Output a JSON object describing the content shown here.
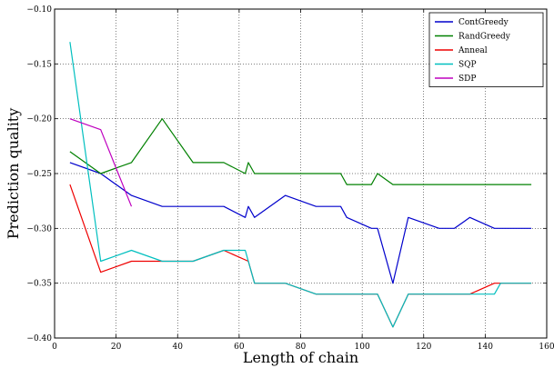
{
  "chart_data": {
    "type": "line",
    "xlabel": "Length of chain",
    "ylabel": "Prediction quality",
    "xlim": [
      0,
      160
    ],
    "ylim": [
      -0.4,
      -0.1
    ],
    "xticks": [
      "0",
      "20",
      "40",
      "60",
      "80",
      "100",
      "120",
      "140",
      "160"
    ],
    "yticks": [
      "−0.40",
      "−0.35",
      "−0.30",
      "−0.25",
      "−0.20",
      "−0.15",
      "−0.10"
    ],
    "grid": true,
    "legend_position": "top-right",
    "series": [
      {
        "name": "ContGreedy",
        "color": "#0000cc",
        "x": [
          5,
          15,
          25,
          35,
          45,
          55,
          62,
          63,
          65,
          75,
          85,
          93,
          95,
          103,
          105,
          110,
          115,
          125,
          130,
          135,
          143,
          155
        ],
        "y": [
          -0.24,
          -0.25,
          -0.27,
          -0.28,
          -0.28,
          -0.28,
          -0.29,
          -0.28,
          -0.29,
          -0.27,
          -0.28,
          -0.28,
          -0.29,
          -0.3,
          -0.3,
          -0.35,
          -0.29,
          -0.3,
          -0.3,
          -0.29,
          -0.3,
          -0.3
        ]
      },
      {
        "name": "RandGreedy",
        "color": "#008000",
        "x": [
          5,
          15,
          25,
          35,
          45,
          55,
          62,
          63,
          65,
          75,
          85,
          93,
          95,
          103,
          105,
          110,
          115,
          125,
          135,
          143,
          155
        ],
        "y": [
          -0.23,
          -0.25,
          -0.24,
          -0.2,
          -0.24,
          -0.24,
          -0.25,
          -0.24,
          -0.25,
          -0.25,
          -0.25,
          -0.25,
          -0.26,
          -0.26,
          -0.25,
          -0.26,
          -0.26,
          -0.26,
          -0.26,
          -0.26,
          -0.26
        ]
      },
      {
        "name": "Anneal",
        "color": "#ee0000",
        "x": [
          5,
          15,
          25,
          35,
          45,
          55,
          63,
          65,
          75,
          85,
          95,
          105,
          110,
          115,
          125,
          135,
          143,
          155
        ],
        "y": [
          -0.26,
          -0.34,
          -0.33,
          -0.33,
          -0.33,
          -0.32,
          -0.33,
          -0.35,
          -0.35,
          -0.36,
          -0.36,
          -0.36,
          -0.39,
          -0.36,
          -0.36,
          -0.36,
          -0.35,
          -0.35
        ]
      },
      {
        "name": "SQP",
        "color": "#00bfbf",
        "x": [
          5,
          15,
          25,
          35,
          45,
          55,
          62,
          65,
          75,
          85,
          95,
          105,
          110,
          115,
          125,
          135,
          143,
          145,
          155
        ],
        "y": [
          -0.13,
          -0.33,
          -0.32,
          -0.33,
          -0.33,
          -0.32,
          -0.32,
          -0.35,
          -0.35,
          -0.36,
          -0.36,
          -0.36,
          -0.39,
          -0.36,
          -0.36,
          -0.36,
          -0.36,
          -0.35,
          -0.35
        ]
      },
      {
        "name": "SDP",
        "color": "#bf00bf",
        "x": [
          5,
          15,
          25
        ],
        "y": [
          -0.2,
          -0.21,
          -0.28
        ]
      }
    ]
  }
}
